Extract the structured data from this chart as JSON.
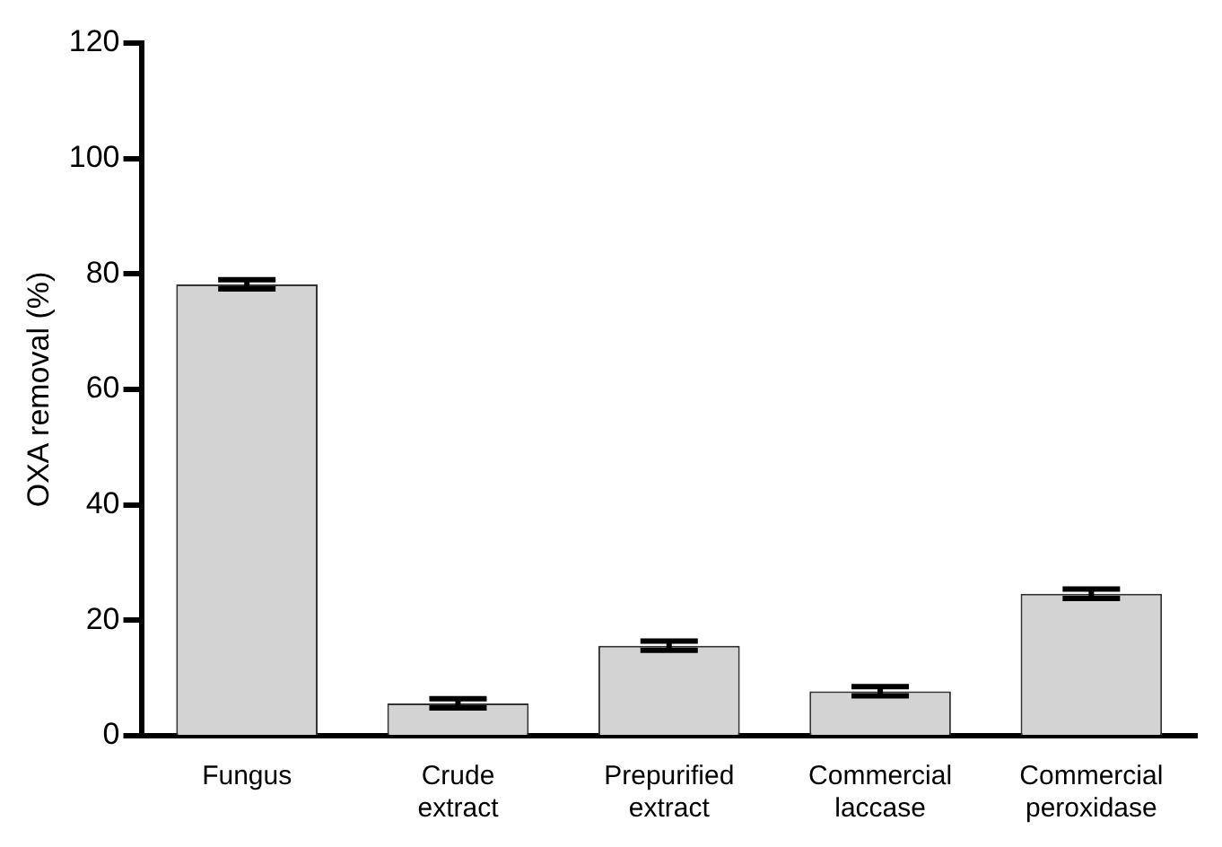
{
  "chart_data": {
    "type": "bar",
    "ylabel": "OXA removal (%)",
    "categories": [
      "Fungus",
      "Crude extract",
      "Prepurified extract",
      "Commercial laccase",
      "Commercial peroxidase"
    ],
    "values": [
      78.2,
      5.6,
      15.6,
      7.7,
      24.6
    ],
    "errors": [
      0.8,
      0.8,
      0.8,
      0.8,
      0.8
    ],
    "color": "#d3d3d3",
    "ylim": [
      0,
      120
    ],
    "yticks": [
      0,
      20,
      40,
      60,
      80,
      100,
      120
    ],
    "grid": false,
    "legend": false
  }
}
